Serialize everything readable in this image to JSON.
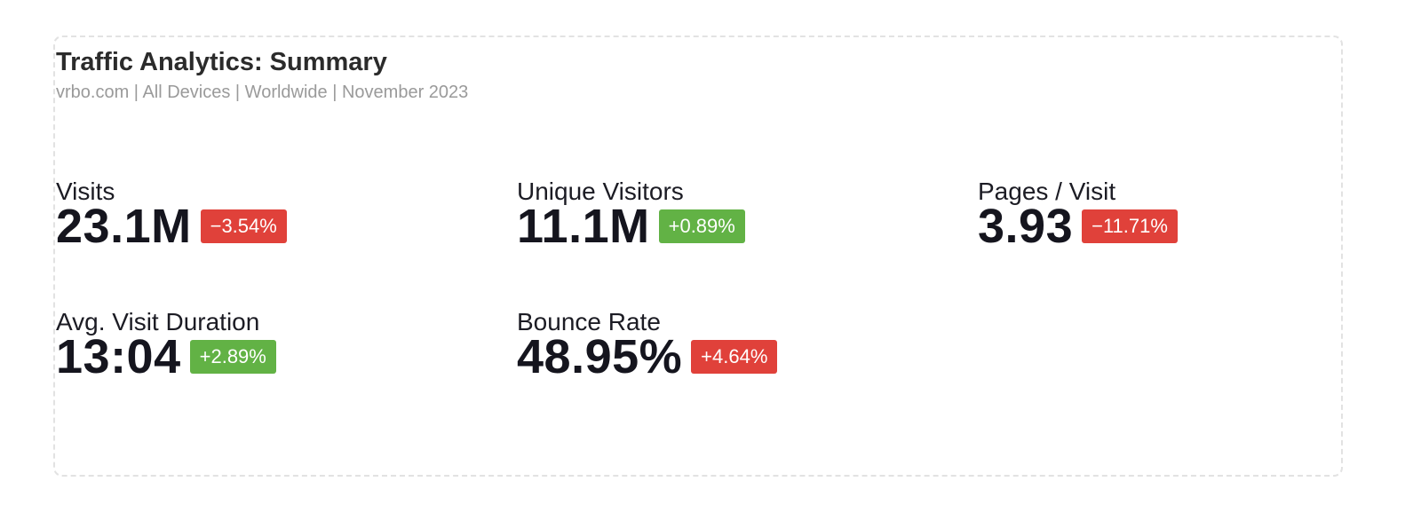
{
  "header": {
    "title": "Traffic Analytics: Summary",
    "subtitle": "vrbo.com | All Devices | Worldwide | November 2023"
  },
  "metrics": [
    {
      "label": "Visits",
      "value": "23.1M",
      "change": "−3.54%",
      "badge_color": "#e0413a"
    },
    {
      "label": "Unique Visitors",
      "value": "11.1M",
      "change": "+0.89%",
      "badge_color": "#62b245"
    },
    {
      "label": "Pages / Visit",
      "value": "3.93",
      "change": "−11.71%",
      "badge_color": "#e0413a"
    },
    {
      "label": "Avg. Visit Duration",
      "value": "13:04",
      "change": "+2.89%",
      "badge_color": "#62b245"
    },
    {
      "label": "Bounce Rate",
      "value": "48.95%",
      "change": "+4.64%",
      "badge_color": "#e0413a"
    }
  ]
}
